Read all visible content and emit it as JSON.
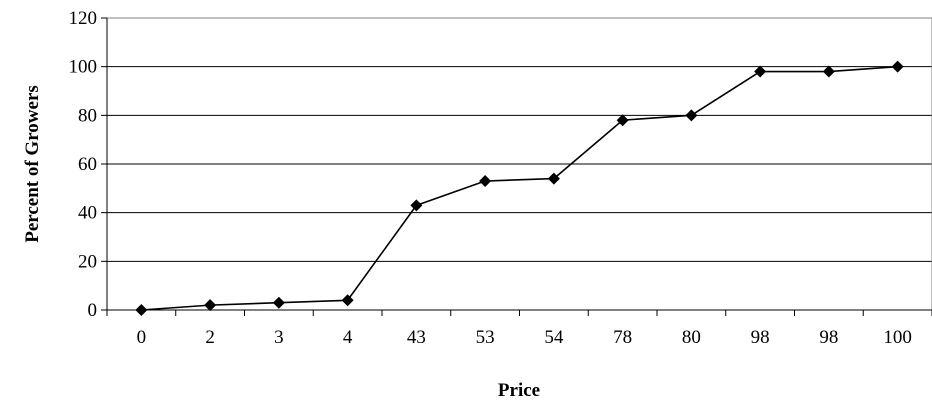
{
  "chart_data": {
    "type": "line",
    "title": "",
    "xlabel": "Price",
    "ylabel": "Percent of Growers",
    "categories": [
      "0",
      "2",
      "3",
      "4",
      "43",
      "53",
      "54",
      "78",
      "80",
      "98",
      "98",
      "100"
    ],
    "series": [
      {
        "values": [
          0,
          2,
          3,
          4,
          43,
          53,
          54,
          78,
          80,
          98,
          98,
          100
        ]
      }
    ],
    "ylim": [
      0,
      120
    ],
    "yticks": [
      "0",
      "20",
      "40",
      "60",
      "80",
      "100",
      "120"
    ],
    "grid": true,
    "legend": "none",
    "marker": "diamond",
    "line_color": "#000000"
  }
}
